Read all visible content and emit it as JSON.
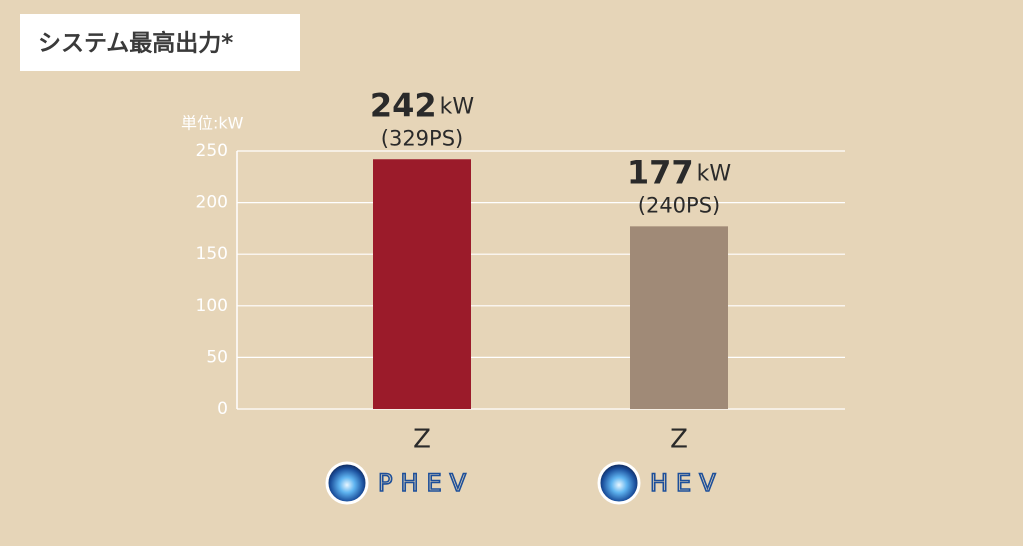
{
  "chart_data": {
    "type": "bar",
    "title": "システム最高出力*",
    "unit_label": "単位:kW",
    "categories": [
      "Z",
      "Z"
    ],
    "subcategories": [
      "PHEV",
      "HEV"
    ],
    "values": [
      242,
      177
    ],
    "value_unit": "kW",
    "secondary_labels": [
      "(329PS)",
      "(240PS)"
    ],
    "colors": [
      "#9b1b2a",
      "#a08a77"
    ],
    "ylim": [
      0,
      250
    ],
    "yticks": [
      0,
      50,
      100,
      150,
      200,
      250
    ],
    "grid": true
  }
}
